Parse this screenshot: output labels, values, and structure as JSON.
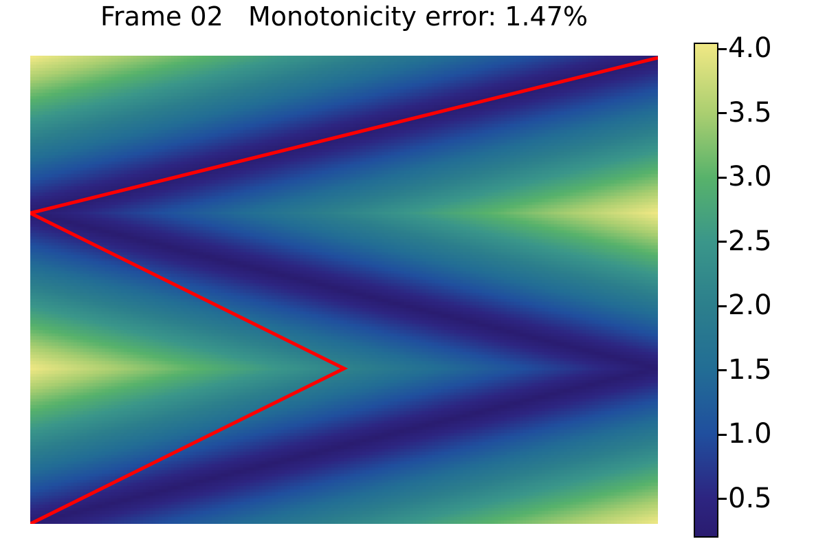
{
  "title": "Frame 02   Monotonicity error: 1.47%",
  "frame_number": "02",
  "monotonicity_error_pct": "1.47%",
  "colors": {
    "background": "#ffffff",
    "text": "#000000",
    "red_line": "#ff0000",
    "colorbar_border": "#000000"
  },
  "chart_data": {
    "type": "heatmap",
    "title": "Frame 02   Monotonicity error: 1.47%",
    "axes": "off",
    "grid_cells": [
      200,
      150
    ],
    "value_range": [
      0.2,
      4.05
    ],
    "field_model": "value = vmin + (vmax - vmin) * |x - valley_x(y)| / width; valley_x is a piecewise-linear zigzag across the full width",
    "valley_vertices_frac": [
      [
        1.0,
        0.0
      ],
      [
        0.0,
        0.3333
      ],
      [
        1.0,
        0.6667
      ],
      [
        0.0,
        1.0
      ]
    ],
    "red_line_vertices_frac": [
      [
        1.0,
        0.0
      ],
      [
        0.0,
        0.3333
      ],
      [
        0.5,
        0.6667
      ],
      [
        0.0,
        1.0
      ]
    ],
    "red_line_width": 5,
    "colormap_stops": [
      [
        0.0,
        "#2a1c70"
      ],
      [
        0.078,
        "#2d2581"
      ],
      [
        0.208,
        "#204f9e"
      ],
      [
        0.338,
        "#226d95"
      ],
      [
        0.468,
        "#2c7f8c"
      ],
      [
        0.597,
        "#3a968a"
      ],
      [
        0.727,
        "#57b26b"
      ],
      [
        0.857,
        "#a9ce70"
      ],
      [
        1.0,
        "#f0e884"
      ]
    ],
    "colorbar": {
      "orientation": "vertical",
      "position": "right",
      "tick_values": [
        4.0,
        3.5,
        3.0,
        2.5,
        2.0,
        1.5,
        1.0,
        0.5
      ],
      "tick_labels": [
        "4.0",
        "3.5",
        "3.0",
        "2.5",
        "2.0",
        "1.5",
        "1.0",
        "0.5"
      ]
    }
  }
}
